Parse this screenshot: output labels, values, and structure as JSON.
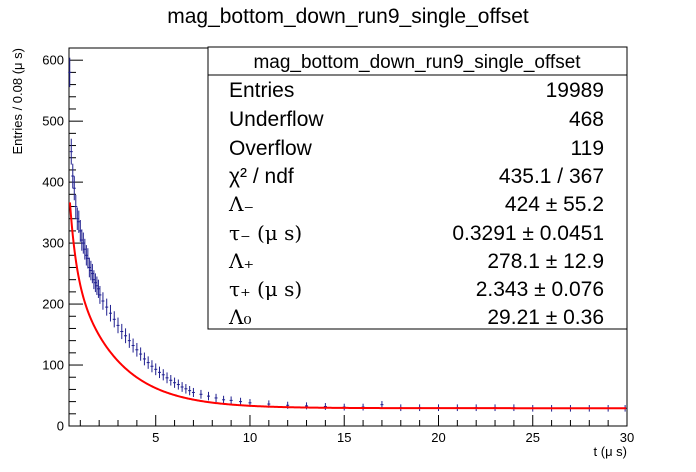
{
  "chart_data": {
    "type": "scatter",
    "title": "mag_bottom_down_run9_single_offset",
    "xlabel": "t (μ s)",
    "ylabel": "Entries / 0.08 (μ s)",
    "xlim": [
      0.4,
      30
    ],
    "ylim": [
      0,
      620
    ],
    "xticks": [
      5,
      10,
      15,
      20,
      25,
      30
    ],
    "yticks": [
      0,
      100,
      200,
      300,
      400,
      500,
      600
    ],
    "grid": false,
    "bin_width": 0.08,
    "series": [
      {
        "points": [
          [
            0.44,
            580
          ],
          [
            0.52,
            450
          ],
          [
            0.6,
            410
          ],
          [
            0.68,
            390
          ],
          [
            0.76,
            360
          ],
          [
            0.84,
            340
          ],
          [
            0.92,
            335
          ],
          [
            1.0,
            320
          ],
          [
            1.08,
            305
          ],
          [
            1.16,
            300
          ],
          [
            1.24,
            290
          ],
          [
            1.32,
            280
          ],
          [
            1.4,
            275
          ],
          [
            1.48,
            260
          ],
          [
            1.56,
            255
          ],
          [
            1.64,
            250
          ],
          [
            1.72,
            240
          ],
          [
            1.8,
            235
          ],
          [
            1.88,
            230
          ],
          [
            1.96,
            225
          ],
          [
            2.04,
            215
          ],
          [
            2.2,
            205
          ],
          [
            2.4,
            195
          ],
          [
            2.6,
            185
          ],
          [
            2.8,
            175
          ],
          [
            3.0,
            165
          ],
          [
            3.2,
            155
          ],
          [
            3.4,
            148
          ],
          [
            3.6,
            140
          ],
          [
            3.8,
            132
          ],
          [
            4.0,
            125
          ],
          [
            4.2,
            118
          ],
          [
            4.4,
            110
          ],
          [
            4.6,
            104
          ],
          [
            4.8,
            98
          ],
          [
            5.0,
            93
          ],
          [
            5.2,
            88
          ],
          [
            5.4,
            84
          ],
          [
            5.6,
            79
          ],
          [
            5.8,
            75
          ],
          [
            6.0,
            71
          ],
          [
            6.2,
            68
          ],
          [
            6.4,
            64
          ],
          [
            6.6,
            61
          ],
          [
            6.8,
            58
          ],
          [
            7.0,
            55
          ],
          [
            7.4,
            52
          ],
          [
            7.8,
            49
          ],
          [
            8.2,
            46
          ],
          [
            8.6,
            43
          ],
          [
            9.0,
            42
          ],
          [
            9.5,
            40
          ],
          [
            10.0,
            38
          ],
          [
            11.0,
            36
          ],
          [
            12.0,
            34
          ],
          [
            13.0,
            33
          ],
          [
            14.0,
            32
          ],
          [
            15.0,
            31
          ],
          [
            16.0,
            31
          ],
          [
            17.0,
            35
          ],
          [
            18.0,
            30
          ],
          [
            19.0,
            30
          ],
          [
            20.0,
            30
          ],
          [
            21.0,
            30
          ],
          [
            22.0,
            30
          ],
          [
            23.0,
            30
          ],
          [
            24.0,
            30
          ],
          [
            25.0,
            29
          ],
          [
            26.0,
            29
          ],
          [
            27.0,
            29
          ],
          [
            28.0,
            29
          ],
          [
            29.0,
            29
          ],
          [
            29.9,
            29
          ]
        ]
      }
    ],
    "fit": {
      "Lambda_minus": 424,
      "tau_minus": 0.3291,
      "Lambda_plus": 278.1,
      "tau_plus": 2.343,
      "Lambda_0": 29.21
    },
    "stats_box": {
      "placement": "top-right",
      "title": "mag_bottom_down_run9_single_offset",
      "rows": [
        {
          "label": "Entries",
          "value": "19989"
        },
        {
          "label": "Underflow",
          "value": "468"
        },
        {
          "label": "Overflow",
          "value": "119"
        },
        {
          "label": "χ² / ndf",
          "value": "435.1 / 367"
        },
        {
          "label": "Λ₋",
          "value": "424 ± 55.2"
        },
        {
          "label": "τ₋ (μ s)",
          "value": "0.3291 ± 0.0451"
        },
        {
          "label": "Λ₊",
          "value": "278.1 ± 12.9"
        },
        {
          "label": "τ₊ (μ s)",
          "value": "2.343 ± 0.076"
        },
        {
          "label": "Λ₀",
          "value": "29.21 ± 0.36"
        }
      ]
    },
    "colors": {
      "points": "#1f1f8f",
      "fit": "#ff0000",
      "frame": "#000000",
      "background": "#ffffff"
    }
  }
}
